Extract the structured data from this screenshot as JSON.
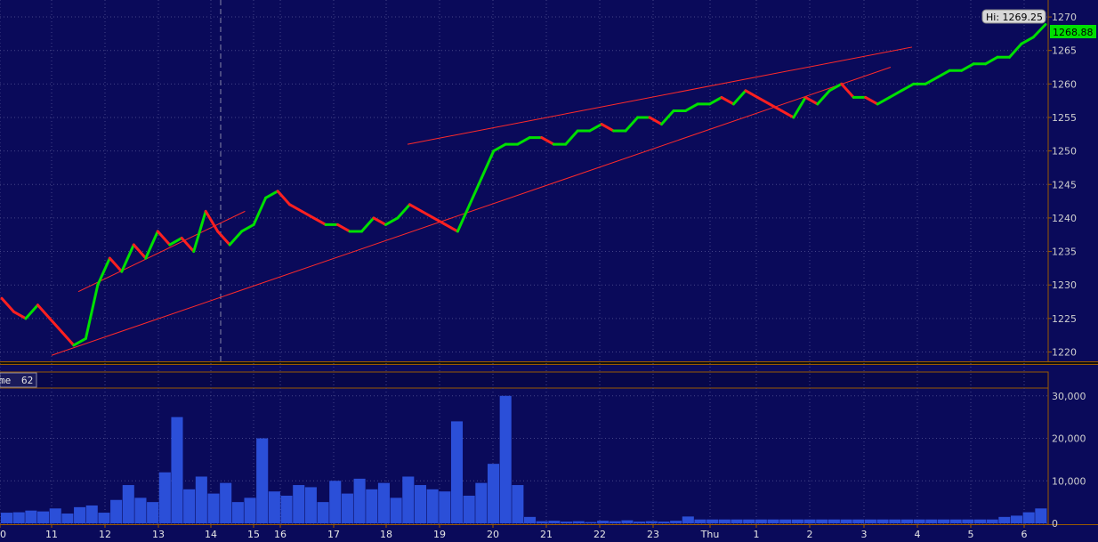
{
  "volume_panel": {
    "label": "me",
    "period": "62"
  },
  "markers": {
    "high_label": "Hi: 1269.25",
    "last_price": "1268.88"
  },
  "colors": {
    "background": "#0a0a5a",
    "up": "#00e000",
    "down": "#ff2020",
    "trend": "#ff2a2a",
    "volume": "#2b4fd8",
    "grid": "#444488",
    "axis": "#9a5a00"
  },
  "chart_data": [
    {
      "type": "line",
      "title": "",
      "x_tick_labels": [
        "0",
        "11",
        "12",
        "13",
        "14",
        "15",
        "16",
        "17",
        "18",
        "19",
        "20",
        "21",
        "22",
        "23",
        "Thu",
        "1",
        "2",
        "3",
        "4",
        "5",
        "6"
      ],
      "y_ticks": [
        1220,
        1225,
        1230,
        1235,
        1240,
        1245,
        1250,
        1255,
        1260,
        1265,
        1270
      ],
      "ylim": [
        1219,
        1272
      ],
      "series": [
        {
          "values": [
            1228,
            1226,
            1225,
            1227,
            1225,
            1223,
            1221,
            1222,
            1230,
            1234,
            1232,
            1236,
            1234,
            1238,
            1236,
            1237,
            1235,
            1241,
            1238,
            1236,
            1238,
            1239,
            1243,
            1244,
            1242,
            1241,
            1240,
            1239,
            1239,
            1238,
            1238,
            1240,
            1239,
            1240,
            1242,
            1241,
            1240,
            1239,
            1238,
            1242,
            1246,
            1250,
            1251,
            1251,
            1252,
            1252,
            1251,
            1251,
            1253,
            1253,
            1254,
            1253,
            1253,
            1255,
            1255,
            1254,
            1256,
            1256,
            1257,
            1257,
            1258,
            1257,
            1259,
            1258,
            1257,
            1256,
            1255,
            1258,
            1257,
            1259,
            1260,
            1258,
            1258,
            1257,
            1258,
            1259,
            1260,
            1260,
            1261,
            1262,
            1262,
            1263,
            1263,
            1264,
            1264,
            1266,
            1267,
            1268.88
          ]
        }
      ],
      "trend_lines": [
        {
          "from": [
            1,
            1219.5
          ],
          "to": [
            17.5,
            1262.5
          ]
        },
        {
          "from": [
            1.5,
            1229
          ],
          "to": [
            4.8,
            1241
          ]
        },
        {
          "from": [
            8.4,
            1251
          ],
          "to": [
            17.9,
            1265.5
          ]
        }
      ],
      "high": 1269.25,
      "last": 1268.88
    },
    {
      "type": "bar",
      "title": "Volume",
      "y_tick_labels": [
        "30,000",
        "20,000",
        "10,000",
        "0"
      ],
      "y_ticks": [
        30000,
        20000,
        10000,
        0
      ],
      "ylim": [
        0,
        31000
      ],
      "values": [
        2500,
        2600,
        3000,
        2800,
        3500,
        2300,
        3800,
        4200,
        2500,
        5500,
        9000,
        6000,
        5000,
        12000,
        25000,
        8000,
        11000,
        7000,
        9500,
        5000,
        6000,
        20000,
        7500,
        6500,
        9000,
        8500,
        5000,
        10000,
        7000,
        10500,
        8000,
        9500,
        6000,
        11000,
        9000,
        8000,
        7500,
        24000,
        6500,
        9500,
        14000,
        30000,
        9000,
        1500,
        500,
        600,
        400,
        500,
        300,
        600,
        500,
        700,
        400,
        500,
        400,
        600,
        1600,
        900,
        900,
        900,
        900,
        900,
        900,
        900,
        900,
        900,
        900,
        900,
        900,
        900,
        900,
        900,
        900,
        900,
        900,
        900,
        900,
        900,
        900,
        900,
        900,
        900,
        1500,
        1800,
        2600,
        3500
      ]
    }
  ]
}
